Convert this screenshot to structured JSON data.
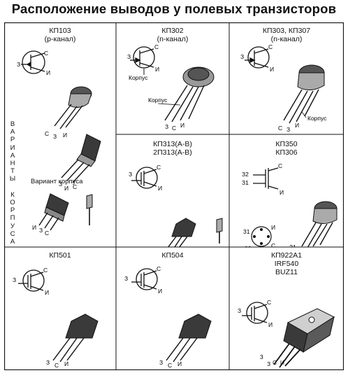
{
  "title": "Расположение выводов у полевых транзисторов",
  "pins": {
    "gate": "З",
    "source": "И",
    "drain": "С",
    "case": "Корпус",
    "g1": "З1",
    "g2": "З2"
  },
  "cells": [
    {
      "id": "kp103",
      "lines": [
        "КП103",
        "(р-канал)"
      ],
      "case_variants_label": "В А Р И А Н Т Ы   К О Р П У С А",
      "case_variant_label": "Вариант корпуса"
    },
    {
      "id": "kp302",
      "lines": [
        "КП302",
        "(n-канал)"
      ]
    },
    {
      "id": "kp303",
      "lines": [
        "КП303, КП307",
        "(n-канал)"
      ]
    },
    {
      "id": "kp313",
      "lines": [
        "КП313(А-В)",
        "2П313(А-В)"
      ]
    },
    {
      "id": "kp350",
      "lines": [
        "КП350",
        "КП306"
      ]
    },
    {
      "id": "kp501",
      "lines": [
        "КП501"
      ]
    },
    {
      "id": "kp504",
      "lines": [
        "КП504"
      ]
    },
    {
      "id": "kp922",
      "lines": [
        "КП922А1",
        "IRF540",
        "BUZ11"
      ]
    }
  ],
  "colors": {
    "line": "#111111",
    "body_dark": "#3a3a3a",
    "body_mid": "#8a8a8a",
    "body_light": "#cfcfcf"
  }
}
